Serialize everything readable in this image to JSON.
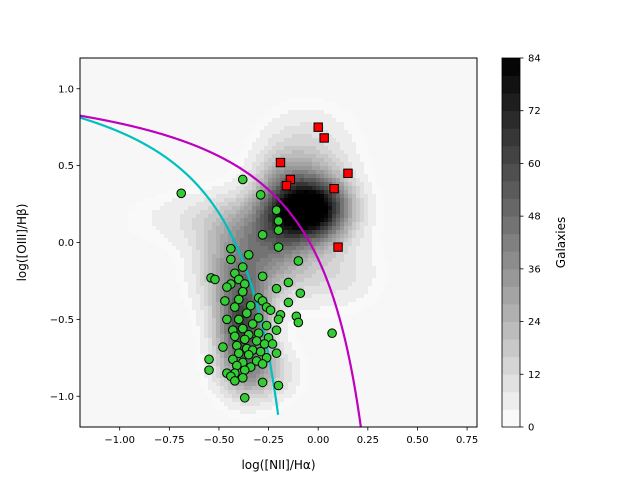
{
  "chart_data": {
    "type": "scatter",
    "xlabel": "log([NII]/Hα)",
    "ylabel": "log([OIII]/Hβ)",
    "xlim": [
      -1.2,
      0.8
    ],
    "ylim": [
      -1.2,
      1.2
    ],
    "x_ticks": [
      -1.0,
      -0.75,
      -0.5,
      -0.25,
      0.0,
      0.25,
      0.5,
      0.75
    ],
    "x_tick_labels": [
      "−1.00",
      "−0.75",
      "−0.50",
      "−0.25",
      "0.00",
      "0.25",
      "0.50",
      "0.75"
    ],
    "y_ticks": [
      -1.0,
      -0.5,
      0.0,
      0.5,
      1.0
    ],
    "y_tick_labels": [
      "−1.0",
      "−0.5",
      "0.0",
      "0.5",
      "1.0"
    ],
    "colorbar": {
      "label": "Galaxies",
      "ticks": [
        0,
        12,
        24,
        36,
        48,
        60,
        72,
        84
      ],
      "tick_labels": [
        "0",
        "12",
        "24",
        "36",
        "48",
        "60",
        "72",
        "84"
      ],
      "range": [
        0,
        84
      ],
      "levels": 21
    },
    "curves": [
      {
        "name": "kauffmann",
        "color": "#00bfbf",
        "formula": "0.61/(x-0.05)+1.3",
        "x_max": -0.2
      },
      {
        "name": "kewley",
        "color": "#bf00bf",
        "formula": "0.61/(x-0.47)+1.19",
        "x_max": 0.25
      }
    ],
    "density_blobs": [
      {
        "cx": -0.02,
        "cy": 0.22,
        "sx": 0.12,
        "sy": 0.14,
        "amp": 84
      },
      {
        "cx": -0.38,
        "cy": -0.55,
        "sx": 0.09,
        "sy": 0.22,
        "amp": 60
      },
      {
        "cx": -0.18,
        "cy": 0.25,
        "sx": 0.1,
        "sy": 0.2,
        "amp": 30
      },
      {
        "cx": -0.25,
        "cy": -0.05,
        "sx": 0.15,
        "sy": 0.2,
        "amp": 28
      },
      {
        "cx": -0.45,
        "cy": -0.15,
        "sx": 0.12,
        "sy": 0.2,
        "amp": 20
      },
      {
        "cx": -0.4,
        "cy": 0.15,
        "sx": 0.3,
        "sy": 0.12,
        "amp": 12
      },
      {
        "cx": -0.05,
        "cy": 0.55,
        "sx": 0.15,
        "sy": 0.2,
        "amp": 14
      },
      {
        "cx": 0.08,
        "cy": -0.2,
        "sx": 0.15,
        "sy": 0.15,
        "amp": 10
      },
      {
        "cx": -0.3,
        "cy": -0.85,
        "sx": 0.12,
        "sy": 0.12,
        "amp": 20
      }
    ],
    "series": [
      {
        "name": "green",
        "marker": "circle",
        "color": "#33cc33",
        "points": [
          [
            -0.69,
            0.32
          ],
          [
            -0.38,
            0.41
          ],
          [
            -0.29,
            0.31
          ],
          [
            -0.21,
            0.21
          ],
          [
            -0.2,
            0.14
          ],
          [
            -0.2,
            0.08
          ],
          [
            -0.28,
            0.05
          ],
          [
            -0.44,
            -0.04
          ],
          [
            -0.2,
            -0.03
          ],
          [
            -0.35,
            -0.08
          ],
          [
            -0.44,
            -0.11
          ],
          [
            -0.1,
            -0.12
          ],
          [
            -0.38,
            -0.16
          ],
          [
            -0.42,
            -0.2
          ],
          [
            -0.54,
            -0.23
          ],
          [
            -0.52,
            -0.24
          ],
          [
            -0.4,
            -0.24
          ],
          [
            -0.28,
            -0.22
          ],
          [
            -0.37,
            -0.27
          ],
          [
            -0.15,
            -0.26
          ],
          [
            -0.44,
            -0.27
          ],
          [
            -0.46,
            -0.29
          ],
          [
            -0.21,
            -0.3
          ],
          [
            -0.09,
            -0.33
          ],
          [
            -0.38,
            -0.32
          ],
          [
            -0.3,
            -0.36
          ],
          [
            -0.47,
            -0.38
          ],
          [
            -0.4,
            -0.37
          ],
          [
            -0.15,
            -0.39
          ],
          [
            -0.28,
            -0.38
          ],
          [
            -0.34,
            -0.41
          ],
          [
            -0.42,
            -0.42
          ],
          [
            -0.26,
            -0.42
          ],
          [
            -0.24,
            -0.44
          ],
          [
            -0.19,
            -0.47
          ],
          [
            -0.36,
            -0.46
          ],
          [
            -0.11,
            -0.48
          ],
          [
            -0.3,
            -0.49
          ],
          [
            -0.46,
            -0.5
          ],
          [
            -0.2,
            -0.5
          ],
          [
            -0.1,
            -0.52
          ],
          [
            -0.4,
            -0.5
          ],
          [
            -0.33,
            -0.53
          ],
          [
            -0.26,
            -0.54
          ],
          [
            -0.38,
            -0.56
          ],
          [
            -0.43,
            -0.57
          ],
          [
            -0.21,
            -0.57
          ],
          [
            -0.3,
            -0.59
          ],
          [
            -0.35,
            -0.6
          ],
          [
            -0.42,
            -0.61
          ],
          [
            0.07,
            -0.59
          ],
          [
            -0.25,
            -0.62
          ],
          [
            -0.37,
            -0.63
          ],
          [
            -0.31,
            -0.64
          ],
          [
            -0.27,
            -0.66
          ],
          [
            -0.41,
            -0.67
          ],
          [
            -0.23,
            -0.66
          ],
          [
            -0.36,
            -0.69
          ],
          [
            -0.48,
            -0.68
          ],
          [
            -0.33,
            -0.7
          ],
          [
            -0.29,
            -0.71
          ],
          [
            -0.4,
            -0.72
          ],
          [
            -0.21,
            -0.72
          ],
          [
            -0.35,
            -0.73
          ],
          [
            -0.26,
            -0.75
          ],
          [
            -0.43,
            -0.76
          ],
          [
            -0.55,
            -0.76
          ],
          [
            -0.31,
            -0.77
          ],
          [
            -0.38,
            -0.78
          ],
          [
            -0.28,
            -0.79
          ],
          [
            -0.41,
            -0.8
          ],
          [
            -0.34,
            -0.81
          ],
          [
            -0.55,
            -0.83
          ],
          [
            -0.37,
            -0.83
          ],
          [
            -0.46,
            -0.85
          ],
          [
            -0.42,
            -0.85
          ],
          [
            -0.44,
            -0.87
          ],
          [
            -0.38,
            -0.88
          ],
          [
            -0.42,
            -0.9
          ],
          [
            -0.28,
            -0.91
          ],
          [
            -0.2,
            -0.93
          ],
          [
            -0.37,
            -1.01
          ]
        ]
      },
      {
        "name": "red",
        "marker": "square",
        "color": "#ff0000",
        "points": [
          [
            0.0,
            0.75
          ],
          [
            0.03,
            0.68
          ],
          [
            -0.19,
            0.52
          ],
          [
            -0.14,
            0.41
          ],
          [
            -0.16,
            0.37
          ],
          [
            0.15,
            0.45
          ],
          [
            0.08,
            0.35
          ],
          [
            0.1,
            -0.03
          ]
        ]
      }
    ]
  }
}
